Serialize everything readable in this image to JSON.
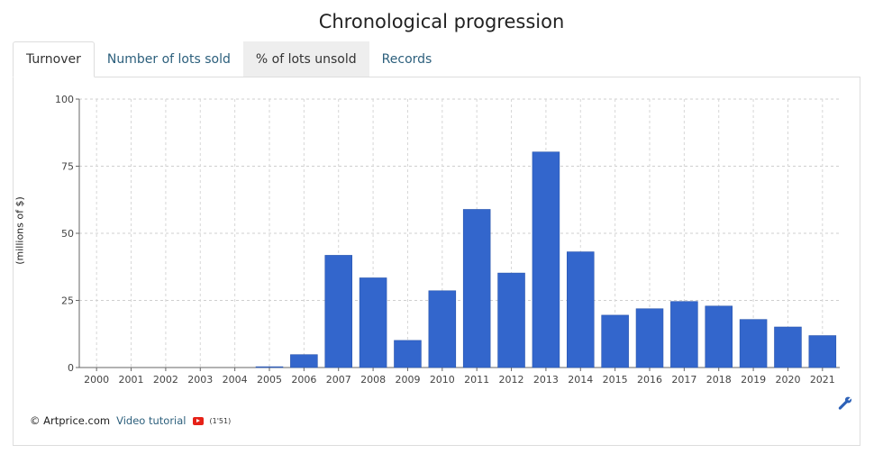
{
  "header": {
    "title": "Chronological progression"
  },
  "tabs": [
    {
      "label": "Turnover"
    },
    {
      "label": "Number of lots sold"
    },
    {
      "label": "% of lots unsold"
    },
    {
      "label": "Records"
    }
  ],
  "chart_data": {
    "type": "bar",
    "categories": [
      "2000",
      "2001",
      "2002",
      "2003",
      "2004",
      "2005",
      "2006",
      "2007",
      "2008",
      "2009",
      "2010",
      "2011",
      "2012",
      "2013",
      "2014",
      "2015",
      "2016",
      "2017",
      "2018",
      "2019",
      "2020",
      "2021"
    ],
    "values": [
      0,
      0,
      0,
      0,
      0,
      0.3,
      4.8,
      41.8,
      33.4,
      10.1,
      28.6,
      58.9,
      35.2,
      80.3,
      43.1,
      19.5,
      21.9,
      24.6,
      22.9,
      17.9,
      15.1,
      11.9
    ],
    "ylabel": "(millions of $)",
    "ylim": [
      0,
      100
    ],
    "yticks": [
      0,
      25,
      50,
      75,
      100
    ],
    "grid": true,
    "bar_color": "#3366cc"
  },
  "footer": {
    "credit": "© Artprice.com",
    "video_label": "Video tutorial",
    "duration": "(1'51)"
  },
  "colors": {
    "link": "#2c5f7c",
    "accent": "#3366cc"
  },
  "icons": {
    "video": "youtube-icon",
    "settings": "wrench-icon"
  }
}
